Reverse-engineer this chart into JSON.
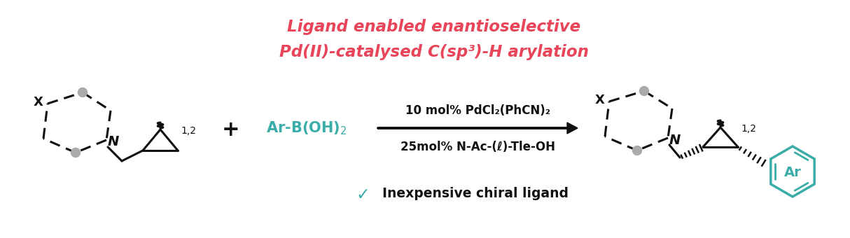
{
  "bg_color": "#ffffff",
  "teal": "#3aada8",
  "red": "#e8455a",
  "black": "#111111",
  "gray": "#aaaaaa",
  "title_line1": "Ligand enabled enantioselective",
  "title_line2": "Pd(II)-catalysed C(sp³)-H arylation",
  "reagent1": "10 mol% PdCl₂(PhCN)₂",
  "reagent2": "25mol% N-Ac-(ℓ)-Tle-OH",
  "check_text": "Inexpensive chiral ligand",
  "ar_boh2": "Ar-B(OH)₂",
  "fig_width": 12.14,
  "fig_height": 3.4,
  "dpi": 100
}
